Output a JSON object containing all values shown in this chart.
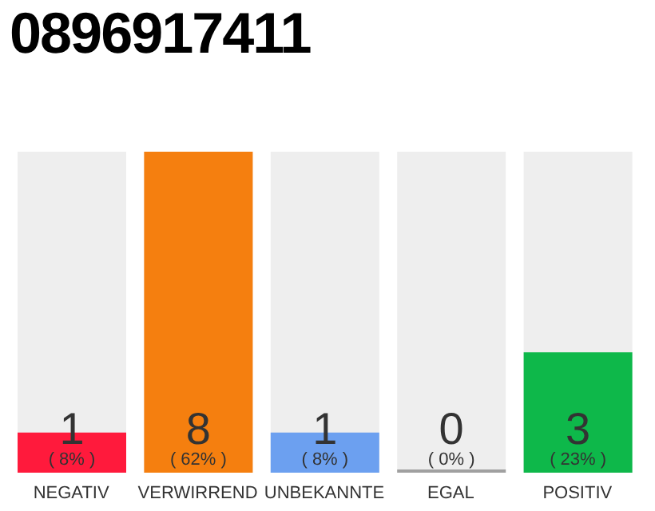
{
  "chart_data": {
    "type": "bar",
    "title": "0896917411",
    "categories": [
      "NEGATIV",
      "VERWIRREND",
      "UNBEKANNTE",
      "EGAL",
      "POSITIV"
    ],
    "values": [
      1,
      8,
      1,
      0,
      3
    ],
    "colors": [
      "#ff1a3c",
      "#f57f0f",
      "#6ca0f0",
      "#a0a0a0",
      "#0eb84a"
    ],
    "data_labels": true,
    "annotations": [
      "( 8% )",
      "( 62% )",
      "( 8% )",
      "( 0% )",
      "( 23% )"
    ]
  }
}
